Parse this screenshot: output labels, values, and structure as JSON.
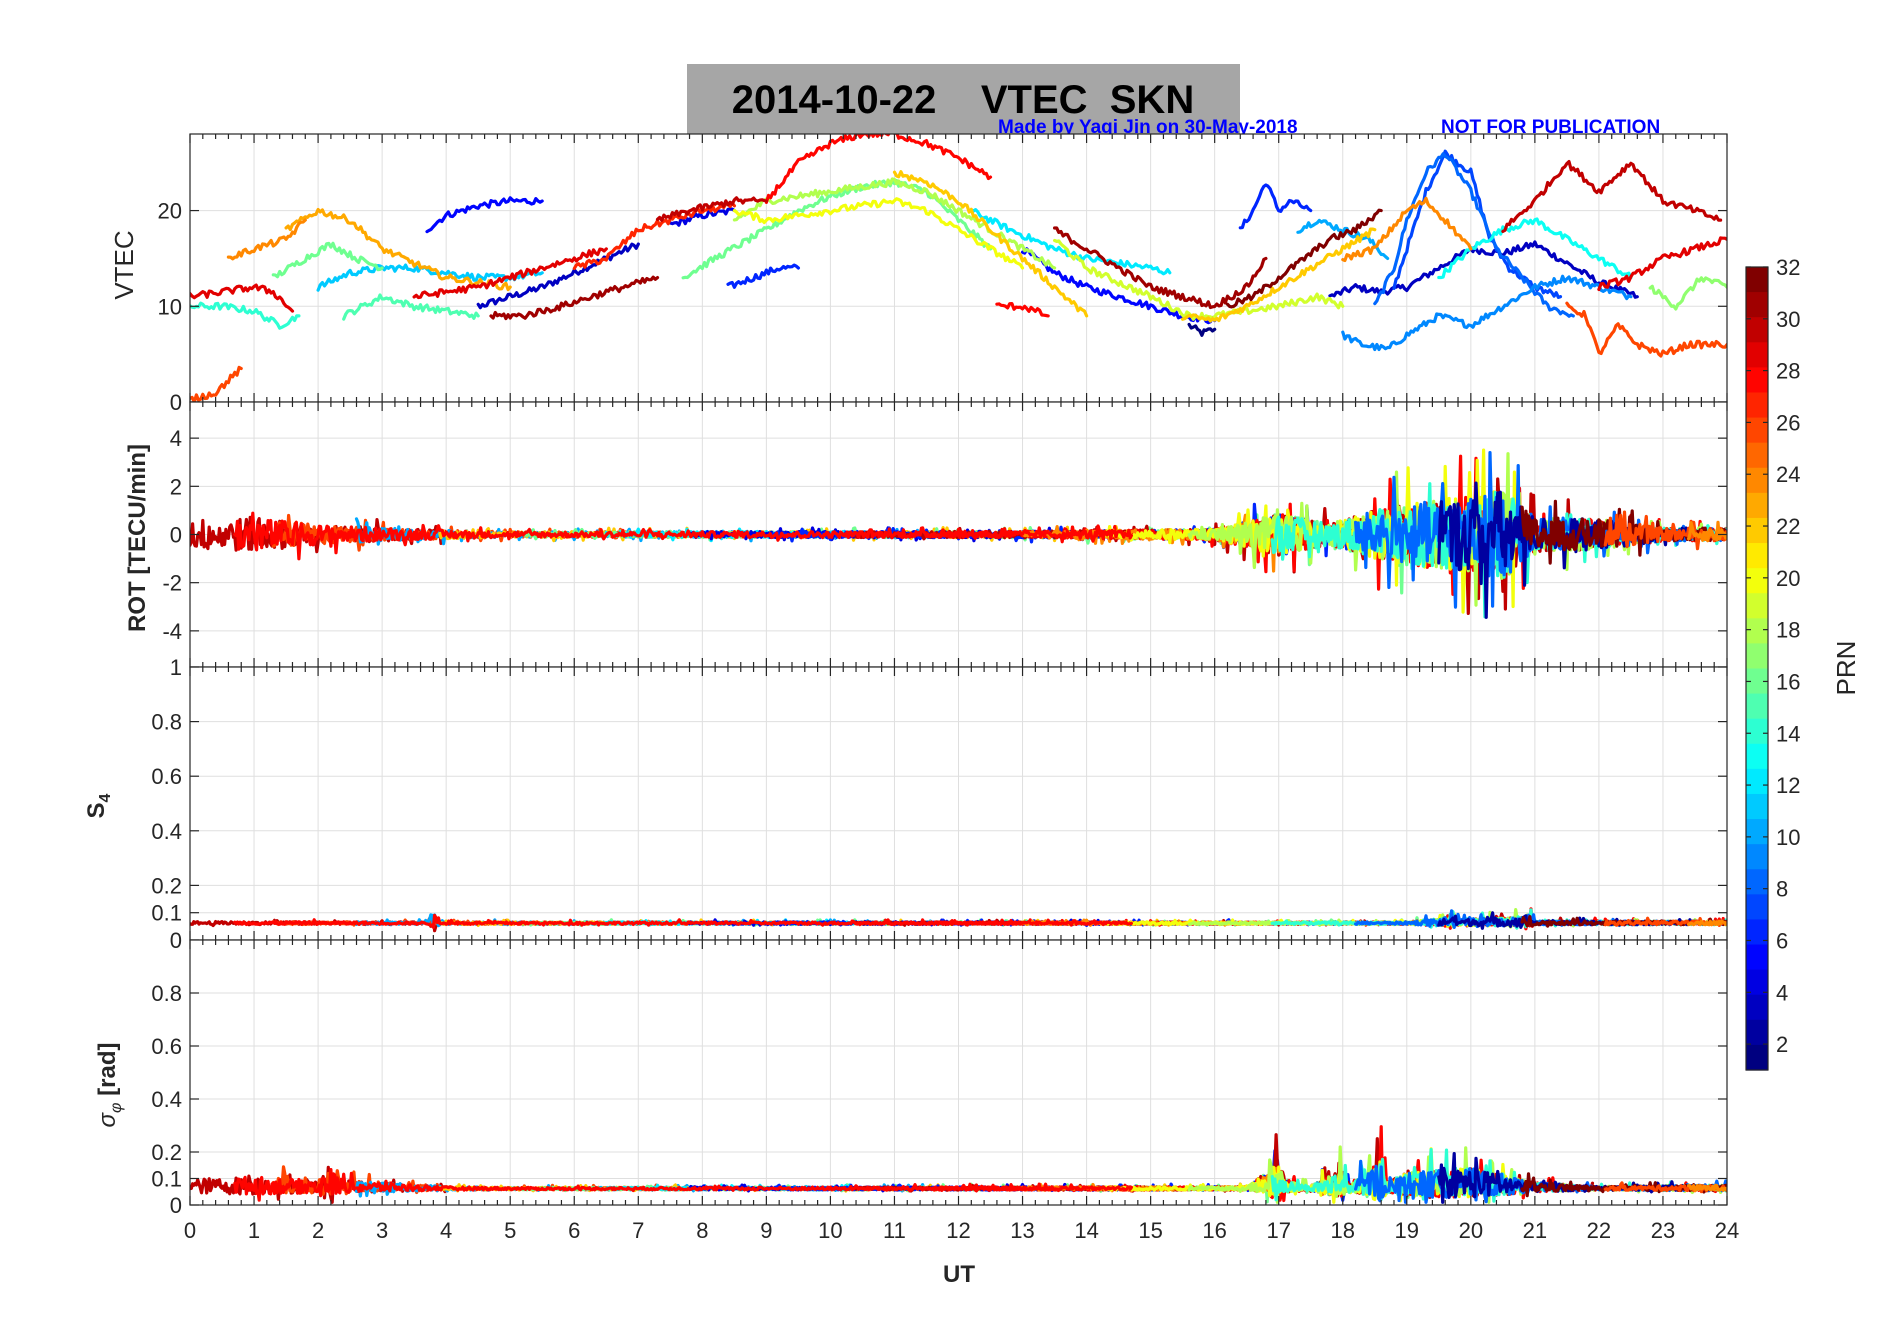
{
  "figure": {
    "title": "2014-10-22    VTEC  SKN",
    "credit_left": "Made by Yaqi Jin on 30-May-2018",
    "credit_right": "NOT FOR PUBLICATION",
    "title_bg": "#a6a6a6",
    "credit_color": "#0000ff"
  },
  "chart_data": [
    {
      "type": "line",
      "ylabel": "VTEC",
      "ylim": [
        0,
        28
      ],
      "yticks": [
        0,
        10,
        20
      ],
      "xlim": [
        0,
        24
      ],
      "grid": true,
      "series": [
        {
          "prn": 1,
          "x": [
            15.6,
            15.8,
            16.0
          ],
          "y": [
            8,
            7.2,
            7.6
          ]
        },
        {
          "prn": 3,
          "x": [
            4.5,
            5,
            5.5,
            6,
            6.5,
            7.0
          ],
          "y": [
            10,
            11,
            12,
            13.5,
            15,
            16.5
          ]
        },
        {
          "prn": 3,
          "x": [
            17.8,
            18.2,
            18.6,
            19.0,
            19.5,
            20,
            20.5,
            21,
            21.5,
            22,
            22.6
          ],
          "y": [
            11,
            12,
            11.5,
            12,
            14,
            16,
            15.5,
            16.5,
            14.5,
            12.5,
            11
          ]
        },
        {
          "prn": 4,
          "x": [
            7.5,
            8,
            8.5
          ],
          "y": [
            18.5,
            19.5,
            20
          ]
        },
        {
          "prn": 5,
          "x": [
            3.7,
            4,
            4.5,
            5,
            5.5
          ],
          "y": [
            18,
            19.5,
            20.5,
            21,
            21
          ]
        },
        {
          "prn": 5,
          "x": [
            13.0,
            13.5,
            14,
            14.5,
            15,
            15.5,
            16
          ],
          "y": [
            16,
            13.5,
            12,
            11,
            10,
            9,
            8.5
          ]
        },
        {
          "prn": 6,
          "x": [
            16.4,
            16.6,
            16.8,
            17,
            17.2,
            17.5
          ],
          "y": [
            18,
            20,
            23,
            20,
            21,
            20
          ]
        },
        {
          "prn": 6,
          "x": [
            8.4,
            8.8,
            9.2,
            9.5
          ],
          "y": [
            12,
            13,
            14,
            14
          ]
        },
        {
          "prn": 7,
          "x": [
            18.8,
            19,
            19.3,
            19.6,
            20,
            20.3,
            20.6,
            21,
            21.4
          ],
          "y": [
            12,
            16,
            22,
            26,
            24,
            17,
            14,
            12,
            11
          ]
        },
        {
          "prn": 8,
          "x": [
            18.5,
            18.8,
            19,
            19.3,
            19.6,
            20,
            20.4,
            20.8,
            21.2,
            21.6
          ],
          "y": [
            10,
            14,
            19,
            24,
            26,
            22,
            16,
            13,
            10,
            9
          ]
        },
        {
          "prn": 9,
          "x": [
            18.0,
            18.3,
            18.7,
            19,
            19.5,
            20,
            20.5,
            21,
            21.5,
            22,
            22.5
          ],
          "y": [
            7,
            6,
            5.5,
            7,
            9,
            8,
            10,
            12,
            13,
            12,
            11
          ]
        },
        {
          "prn": 10,
          "x": [
            17.3,
            17.6,
            18,
            18.4,
            18.7
          ],
          "y": [
            18,
            19,
            18,
            17,
            15
          ]
        },
        {
          "prn": 11,
          "x": [
            2.0,
            2.5,
            3,
            3.5,
            4,
            4.5,
            5,
            5.5
          ],
          "y": [
            12,
            13.5,
            14,
            14,
            13.5,
            13,
            13,
            13.5
          ]
        },
        {
          "prn": 12,
          "x": [
            12.2,
            12.8,
            13.5,
            14,
            14.5,
            15,
            15.3
          ],
          "y": [
            20,
            18,
            16,
            15,
            14.5,
            14,
            13.5
          ]
        },
        {
          "prn": 13,
          "x": [
            19.5,
            20,
            20.5,
            21,
            21.5,
            22,
            22.5
          ],
          "y": [
            13,
            16,
            18,
            19,
            17,
            15,
            13
          ]
        },
        {
          "prn": 14,
          "x": [
            0,
            0.5,
            1,
            1.4,
            1.7
          ],
          "y": [
            10,
            10,
            9.5,
            8,
            9
          ]
        },
        {
          "prn": 15,
          "x": [
            2.4,
            3,
            3.5,
            4,
            4.5
          ],
          "y": [
            9,
            11,
            10,
            9.5,
            9
          ]
        },
        {
          "prn": 16,
          "x": [
            1.3,
            1.8,
            2.2,
            2.6,
            3
          ],
          "y": [
            13,
            15,
            16.5,
            15,
            14
          ]
        },
        {
          "prn": 16,
          "x": [
            7.7,
            8.2,
            9,
            9.5,
            10,
            10.5,
            11,
            11.5,
            12,
            12.5
          ],
          "y": [
            13,
            15,
            18,
            20,
            21.5,
            22.5,
            23,
            22,
            19,
            16
          ]
        },
        {
          "prn": 17,
          "x": [
            22.8,
            23.2,
            23.6,
            24
          ],
          "y": [
            12,
            10,
            13,
            12
          ]
        },
        {
          "prn": 18,
          "x": [
            8.5,
            9,
            10,
            11,
            11.5,
            12,
            12.5,
            13,
            13.5
          ],
          "y": [
            19,
            21,
            22,
            23,
            22,
            20,
            18,
            16,
            14
          ]
        },
        {
          "prn": 19,
          "x": [
            13.5,
            14,
            15,
            15.6,
            16,
            17,
            17.6,
            18
          ],
          "y": [
            17,
            14,
            11,
            9,
            9,
            10,
            11,
            10
          ]
        },
        {
          "prn": 20,
          "x": [
            8.5,
            9,
            10,
            11,
            11.5,
            12,
            12.5,
            13
          ],
          "y": [
            20,
            19,
            20,
            21,
            20,
            18,
            16,
            14
          ]
        },
        {
          "prn": 22,
          "x": [
            11,
            11.5,
            12,
            12.5,
            13,
            13.5,
            14
          ],
          "y": [
            24,
            23,
            21,
            18,
            15,
            12,
            9
          ]
        },
        {
          "prn": 22,
          "x": [
            15.5,
            16,
            16.5,
            17,
            17.5,
            18,
            18.5
          ],
          "y": [
            9,
            8.5,
            10,
            12,
            14,
            16,
            18
          ]
        },
        {
          "prn": 23,
          "x": [
            1.5,
            2,
            2.5,
            3,
            3.5,
            4,
            4.5,
            5
          ],
          "y": [
            18,
            20,
            19,
            16,
            14.5,
            13,
            12.5,
            12
          ]
        },
        {
          "prn": 24,
          "x": [
            0.6,
            1,
            1.5,
            1.8
          ],
          "y": [
            15,
            16,
            17,
            19
          ]
        },
        {
          "prn": 24,
          "x": [
            18,
            18.5,
            19,
            19.3,
            19.6,
            20
          ],
          "y": [
            15,
            16,
            20,
            21,
            19,
            16
          ]
        },
        {
          "prn": 26,
          "x": [
            0,
            0.4,
            0.8
          ],
          "y": [
            0.2,
            1,
            3.5
          ]
        },
        {
          "prn": 26,
          "x": [
            21.5,
            21.8,
            22,
            22.3,
            22.6,
            23,
            23.4,
            24
          ],
          "y": [
            10,
            9,
            5,
            8,
            6,
            5,
            6,
            6
          ]
        },
        {
          "prn": 27,
          "x": [
            6,
            6.5,
            7,
            8,
            8.5
          ],
          "y": [
            14,
            15,
            18,
            20,
            20.5
          ]
        },
        {
          "prn": 28,
          "x": [
            9,
            9.5,
            10,
            10.5,
            11,
            11.5,
            12,
            12.5
          ],
          "y": [
            21,
            25,
            27,
            28,
            28,
            27,
            25.5,
            23.5
          ]
        },
        {
          "prn": 28,
          "x": [
            12.6,
            13,
            13.4
          ],
          "y": [
            10,
            10,
            9
          ]
        },
        {
          "prn": 29,
          "x": [
            0,
            0.5,
            1,
            1.3,
            1.6
          ],
          "y": [
            11,
            11.5,
            12,
            11.5,
            9.5
          ]
        },
        {
          "prn": 29,
          "x": [
            3.5,
            4,
            4.5,
            5,
            6,
            6.5
          ],
          "y": [
            11,
            11.5,
            12,
            13,
            15,
            16
          ]
        },
        {
          "prn": 29,
          "x": [
            22,
            22.5,
            23,
            23.5,
            24
          ],
          "y": [
            12,
            13,
            15,
            16,
            17
          ]
        },
        {
          "prn": 30,
          "x": [
            7.3,
            7.8,
            8.5,
            9
          ],
          "y": [
            19,
            20,
            21,
            21
          ]
        },
        {
          "prn": 30,
          "x": [
            20.5,
            21,
            21.5,
            22,
            22.5,
            23,
            23.5,
            23.9
          ],
          "y": [
            18,
            21,
            25,
            22,
            25,
            21,
            20,
            19
          ]
        },
        {
          "prn": 31,
          "x": [
            4.7,
            5.2,
            5.8,
            6.5,
            7.3
          ],
          "y": [
            9,
            9,
            10,
            11.5,
            13
          ]
        },
        {
          "prn": 31,
          "x": [
            13.5,
            14,
            14.5,
            15,
            15.5,
            16,
            16.5,
            16.8
          ],
          "y": [
            18,
            16,
            14,
            12,
            11,
            10,
            12,
            15
          ]
        },
        {
          "prn": 32,
          "x": [
            16.2,
            16.6,
            17,
            17.4,
            17.8,
            18.2,
            18.6
          ],
          "y": [
            10,
            11,
            13,
            15,
            17,
            18,
            20
          ]
        }
      ]
    },
    {
      "type": "line",
      "ylabel": "ROT [TECU/min]",
      "ylim": [
        -5.5,
        5.5
      ],
      "yticks": [
        -4,
        -2,
        0,
        2,
        4
      ],
      "xlim": [
        0,
        24
      ],
      "grid": true,
      "noise_profile": {
        "x": [
          0,
          1,
          2,
          3,
          4,
          5,
          13,
          16,
          16.5,
          17,
          17.8,
          18.5,
          19,
          20,
          20.5,
          21,
          22,
          23,
          24
        ],
        "amp": [
          1.4,
          1.6,
          0.9,
          0.6,
          0.4,
          0.25,
          0.3,
          0.5,
          1.2,
          1.9,
          1.0,
          2.2,
          2.8,
          3.5,
          4.2,
          1.6,
          1.4,
          0.6,
          0.6
        ]
      }
    },
    {
      "type": "line",
      "ylabel": "S4",
      "ylim": [
        0,
        1
      ],
      "yticks": [
        0,
        0.1,
        0.2,
        0.4,
        0.6,
        0.8,
        1
      ],
      "xlim": [
        0,
        24
      ],
      "grid": true,
      "baseline": 0.06,
      "noise_profile": {
        "x": [
          0,
          3.7,
          3.8,
          3.9,
          19,
          19.6,
          19.7,
          19.8,
          20.8,
          20.9,
          21,
          24
        ],
        "amp": [
          0.025,
          0.02,
          0.12,
          0.02,
          0.02,
          0.07,
          0.15,
          0.05,
          0.08,
          0.12,
          0.03,
          0.03
        ]
      }
    },
    {
      "type": "line",
      "ylabel": "σ_φ [rad]",
      "ylim": [
        0,
        1
      ],
      "yticks": [
        0,
        0.1,
        0.2,
        0.4,
        0.6,
        0.8
      ],
      "xlim": [
        0,
        24
      ],
      "grid": true,
      "baseline": 0.06,
      "noise_profile": {
        "x": [
          0,
          1,
          2,
          2.2,
          2.4,
          3,
          4,
          5,
          16.5,
          16.9,
          17,
          17.1,
          17.5,
          18,
          18.1,
          18.6,
          18.7,
          19,
          20,
          21,
          22,
          24
        ],
        "amp": [
          0.12,
          0.15,
          0.1,
          0.25,
          0.1,
          0.08,
          0.03,
          0.02,
          0.03,
          0.25,
          0.38,
          0.1,
          0.04,
          0.25,
          0.04,
          0.35,
          0.08,
          0.2,
          0.25,
          0.08,
          0.03,
          0.05
        ]
      }
    }
  ],
  "xaxis": {
    "label": "UT",
    "ticks": [
      0,
      1,
      2,
      3,
      4,
      5,
      6,
      7,
      8,
      9,
      10,
      11,
      12,
      13,
      14,
      15,
      16,
      17,
      18,
      19,
      20,
      21,
      22,
      23,
      24
    ]
  },
  "colorbar": {
    "label": "PRN",
    "range": [
      1,
      32
    ],
    "ticks": [
      2,
      4,
      6,
      8,
      10,
      12,
      14,
      16,
      18,
      20,
      22,
      24,
      26,
      28,
      30,
      32
    ],
    "colormap": "jet"
  }
}
